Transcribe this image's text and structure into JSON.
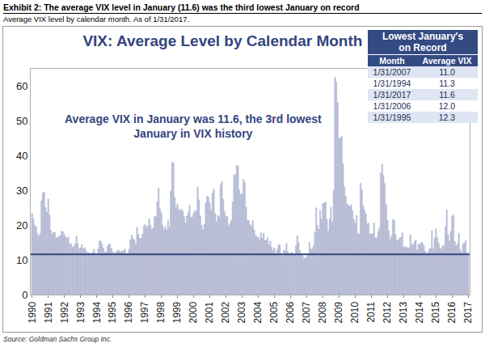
{
  "header": {
    "title": "Exhibit 2: The average VIX level in January (11.6) was the third lowest January on record",
    "subtitle": "Average VIX level by calendar month. As of 1/31/2017."
  },
  "source": "Source: Goldman Sachs Group Inc.",
  "chart_data": {
    "type": "bar",
    "title": "VIX: Average Level by Calendar Month",
    "annotation": [
      "Average VIX in January was 11.6, the 3rd lowest",
      "January in VIX history"
    ],
    "reference_line": 11.6,
    "color": "#bcc0d8",
    "ylim": [
      0,
      65
    ],
    "yticks": [
      0,
      10,
      20,
      30,
      40,
      50,
      60
    ],
    "grid": false,
    "categories": [
      "1990",
      null,
      null,
      null,
      null,
      null,
      null,
      null,
      null,
      null,
      null,
      null,
      "1991",
      null,
      null,
      null,
      null,
      null,
      null,
      null,
      null,
      null,
      null,
      null,
      "1992",
      null,
      null,
      null,
      null,
      null,
      null,
      null,
      null,
      null,
      null,
      null,
      "1993",
      null,
      null,
      null,
      null,
      null,
      null,
      null,
      null,
      null,
      null,
      null,
      "1994",
      null,
      null,
      null,
      null,
      null,
      null,
      null,
      null,
      null,
      null,
      null,
      "1995",
      null,
      null,
      null,
      null,
      null,
      null,
      null,
      null,
      null,
      null,
      null,
      "1996",
      null,
      null,
      null,
      null,
      null,
      null,
      null,
      null,
      null,
      null,
      null,
      "1997",
      null,
      null,
      null,
      null,
      null,
      null,
      null,
      null,
      null,
      null,
      null,
      "1998",
      null,
      null,
      null,
      null,
      null,
      null,
      null,
      null,
      null,
      null,
      null,
      "1999",
      null,
      null,
      null,
      null,
      null,
      null,
      null,
      null,
      null,
      null,
      null,
      "2000",
      null,
      null,
      null,
      null,
      null,
      null,
      null,
      null,
      null,
      null,
      null,
      "2001",
      null,
      null,
      null,
      null,
      null,
      null,
      null,
      null,
      null,
      null,
      null,
      "2002",
      null,
      null,
      null,
      null,
      null,
      null,
      null,
      null,
      null,
      null,
      null,
      "2003",
      null,
      null,
      null,
      null,
      null,
      null,
      null,
      null,
      null,
      null,
      null,
      "2004",
      null,
      null,
      null,
      null,
      null,
      null,
      null,
      null,
      null,
      null,
      null,
      "2005",
      null,
      null,
      null,
      null,
      null,
      null,
      null,
      null,
      null,
      null,
      null,
      "2006",
      null,
      null,
      null,
      null,
      null,
      null,
      null,
      null,
      null,
      null,
      null,
      "2007",
      null,
      null,
      null,
      null,
      null,
      null,
      null,
      null,
      null,
      null,
      null,
      "2008",
      null,
      null,
      null,
      null,
      null,
      null,
      null,
      null,
      null,
      null,
      null,
      "2009",
      null,
      null,
      null,
      null,
      null,
      null,
      null,
      null,
      null,
      null,
      null,
      "2010",
      null,
      null,
      null,
      null,
      null,
      null,
      null,
      null,
      null,
      null,
      null,
      "2011",
      null,
      null,
      null,
      null,
      null,
      null,
      null,
      null,
      null,
      null,
      null,
      "2012",
      null,
      null,
      null,
      null,
      null,
      null,
      null,
      null,
      null,
      null,
      null,
      "2013",
      null,
      null,
      null,
      null,
      null,
      null,
      null,
      null,
      null,
      null,
      null,
      "2014",
      null,
      null,
      null,
      null,
      null,
      null,
      null,
      null,
      null,
      null,
      null,
      "2015",
      null,
      null,
      null,
      null,
      null,
      null,
      null,
      null,
      null,
      null,
      null,
      "2016",
      null,
      null,
      null,
      null,
      null,
      null,
      null,
      null,
      null,
      null,
      null,
      "2017"
    ],
    "values": [
      23.4,
      21.8,
      20.0,
      19.5,
      17.6,
      16.9,
      17.6,
      27.0,
      29.3,
      29.6,
      25.1,
      23.7,
      27.5,
      23.0,
      18.5,
      17.4,
      17.9,
      17.9,
      16.5,
      16.4,
      16.9,
      17.0,
      18.3,
      18.1,
      17.3,
      16.5,
      16.2,
      16.6,
      14.5,
      14.7,
      13.7,
      13.8,
      14.6,
      16.8,
      14.7,
      13.2,
      13.5,
      14.4,
      13.3,
      13.6,
      12.8,
      12.1,
      12.1,
      11.9,
      11.6,
      12.1,
      13.0,
      11.9,
      11.3,
      13.1,
      15.4,
      15.5,
      14.6,
      13.4,
      12.2,
      12.3,
      13.9,
      14.6,
      14.5,
      13.3,
      12.3,
      11.6,
      12.2,
      12.5,
      12.8,
      12.5,
      12.3,
      12.6,
      12.6,
      13.1,
      11.8,
      11.8,
      13.1,
      15.7,
      17.2,
      16.1,
      15.8,
      14.6,
      19.4,
      17.3,
      16.3,
      16.1,
      17.4,
      19.7,
      20.2,
      19.2,
      19.8,
      21.8,
      20.0,
      18.9,
      19.2,
      22.4,
      22.5,
      26.7,
      30.7,
      24.7,
      23.6,
      20.0,
      18.7,
      19.5,
      18.7,
      21.4,
      19.3,
      29.8,
      38.1,
      37.9,
      28.0,
      25.2,
      26.1,
      24.5,
      24.2,
      24.6,
      24.0,
      22.5,
      20.7,
      22.6,
      23.6,
      25.8,
      22.3,
      22.3,
      23.5,
      24.2,
      24.2,
      31.0,
      27.3,
      22.7,
      20.0,
      18.7,
      20.4,
      26.4,
      28.4,
      28.1,
      26.5,
      24.2,
      29.3,
      30.4,
      23.4,
      21.0,
      22.8,
      22.4,
      31.6,
      32.6,
      27.5,
      23.9,
      22.6,
      22.5,
      19.7,
      20.5,
      21.4,
      26.7,
      34.4,
      34.6,
      37.3,
      37.0,
      30.1,
      28.9,
      29.1,
      33.2,
      32.3,
      25.2,
      21.4,
      21.3,
      20.2,
      19.7,
      21.3,
      18.6,
      17.0,
      16.7,
      16.5,
      15.8,
      17.8,
      16.3,
      17.7,
      15.6,
      15.7,
      16.4,
      14.3,
      15.4,
      13.6,
      12.7,
      13.5,
      11.9,
      12.9,
      14.3,
      14.4,
      11.5,
      11.2,
      12.8,
      12.6,
      14.7,
      12.3,
      11.4,
      12.0,
      12.1,
      11.4,
      11.6,
      14.1,
      17.0,
      15.0,
      12.7,
      11.8,
      11.2,
      10.6,
      10.5,
      11.0,
      11.4,
      15.1,
      13.2,
      13.1,
      14.0,
      17.8,
      25.0,
      19.9,
      18.9,
      24.3,
      21.8,
      26.2,
      26.3,
      26.7,
      21.6,
      18.3,
      21.8,
      25.1,
      20.9,
      30.1,
      62.6,
      61.2,
      55.3,
      45.0,
      45.1,
      45.6,
      37.7,
      31.1,
      28.4,
      26.0,
      25.9,
      25.4,
      25.9,
      24.2,
      21.7,
      20.6,
      22.8,
      17.7,
      17.4,
      32.1,
      30.1,
      25.5,
      24.3,
      23.2,
      20.4,
      20.6,
      17.5,
      17.4,
      17.6,
      20.7,
      16.3,
      16.4,
      18.2,
      19.2,
      35.0,
      37.5,
      34.4,
      32.0,
      25.9,
      21.4,
      18.4,
      15.8,
      17.0,
      21.7,
      21.3,
      17.3,
      15.8,
      15.6,
      16.4,
      16.6,
      17.8,
      13.6,
      13.9,
      13.5,
      13.6,
      13.4,
      17.3,
      14.4,
      14.4,
      15.2,
      15.7,
      12.9,
      14.5,
      14.4,
      15.0,
      14.9,
      14.1,
      12.5,
      11.4,
      12.2,
      13.1,
      13.3,
      18.4,
      13.2,
      16.2,
      18.9,
      16.5,
      14.8,
      13.5,
      13.1,
      14.1,
      14.0,
      19.5,
      24.4,
      17.3,
      15.5,
      18.2,
      22.5,
      23.0,
      15.3,
      14.0,
      14.6,
      17.6,
      13.0,
      12.3,
      14.5,
      14.9,
      15.6,
      12.2,
      11.6
    ],
    "table": {
      "title": [
        "Lowest January's",
        "on Record"
      ],
      "columns": [
        "Month",
        "Average VIX"
      ],
      "rows": [
        [
          "1/31/2007",
          "11.0"
        ],
        [
          "1/31/1994",
          "11.3"
        ],
        [
          "1/31/2017",
          "11.6"
        ],
        [
          "1/31/2006",
          "12.0"
        ],
        [
          "1/31/1995",
          "12.3"
        ]
      ]
    }
  }
}
